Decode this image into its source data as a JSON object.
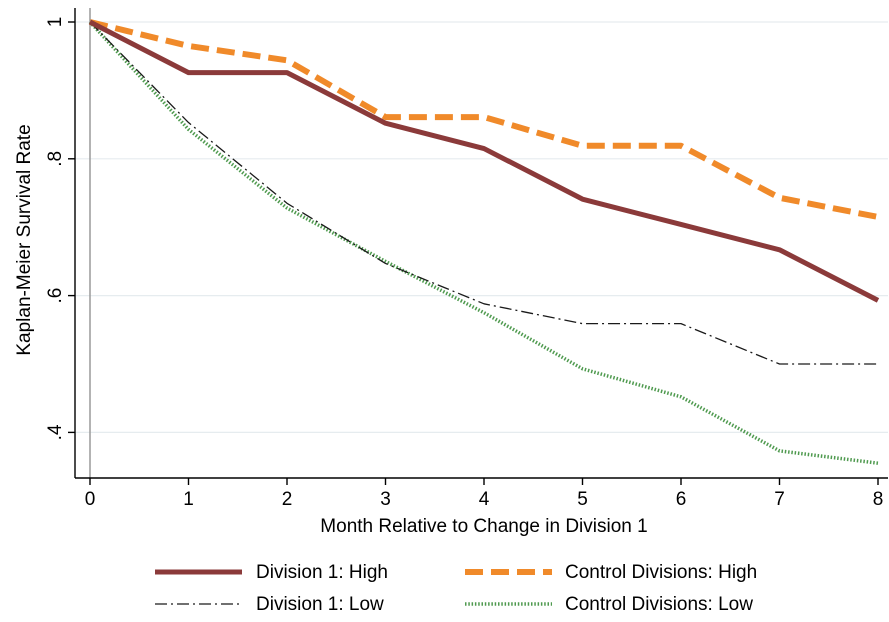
{
  "chart_data": {
    "type": "line",
    "title": "",
    "xlabel": "Month Relative to Change in Division 1",
    "ylabel": "Kaplan-Meier Survival Rate",
    "x": [
      0,
      1,
      2,
      3,
      4,
      5,
      6,
      7,
      8
    ],
    "xlim": [
      0,
      8
    ],
    "ylim": [
      0.35,
      1.0
    ],
    "x_ticks": [
      "0",
      "1",
      "2",
      "3",
      "4",
      "5",
      "6",
      "7",
      "8"
    ],
    "y_ticks": [
      {
        "value": 1.0,
        "label": "1"
      },
      {
        "value": 0.8,
        "label": ".8"
      },
      {
        "value": 0.6,
        "label": ".6"
      },
      {
        "value": 0.4,
        "label": ".4"
      }
    ],
    "grid": true,
    "legend_position": "bottom",
    "series": [
      {
        "name": "Division 1: High",
        "values": [
          1.0,
          0.926,
          0.926,
          0.852,
          0.815,
          0.741,
          0.704,
          0.667,
          0.593
        ],
        "color": "#8b3a3a",
        "style": "solid"
      },
      {
        "name": "Control Divisions: High",
        "values": [
          1.0,
          0.965,
          0.944,
          0.861,
          0.861,
          0.819,
          0.819,
          0.743,
          0.715
        ],
        "color": "#f08a2a",
        "style": "dashed"
      },
      {
        "name": "Division 1: Low",
        "values": [
          1.0,
          0.853,
          0.735,
          0.647,
          0.588,
          0.559,
          0.559,
          0.5,
          0.5
        ],
        "color": "#1a1a1a",
        "style": "dashdot"
      },
      {
        "name": "Control Divisions: Low",
        "values": [
          1.0,
          0.843,
          0.728,
          0.65,
          0.575,
          0.493,
          0.452,
          0.373,
          0.355
        ],
        "color": "#4f9a4f",
        "style": "dotted"
      }
    ]
  }
}
